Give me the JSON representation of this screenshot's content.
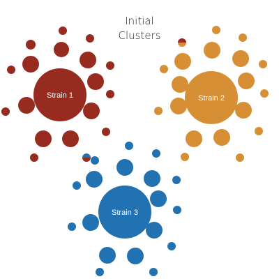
{
  "title": {
    "line1": "Initial",
    "line2": "Clusters"
  },
  "colors": {
    "strain_1": "#982b1f",
    "strain_2": "#d68f34",
    "strain_3": "#2271b1",
    "center_text": "#ffffff",
    "background": "#ffffff"
  },
  "clusters": [
    {
      "id": "strain-1",
      "label": "Strain 1",
      "color_key": "strain_1"
    },
    {
      "id": "strain-2",
      "label": "Strain 2",
      "color_key": "strain_2"
    },
    {
      "id": "strain-3",
      "label": "Strain 3",
      "color_key": "strain_3"
    }
  ]
}
